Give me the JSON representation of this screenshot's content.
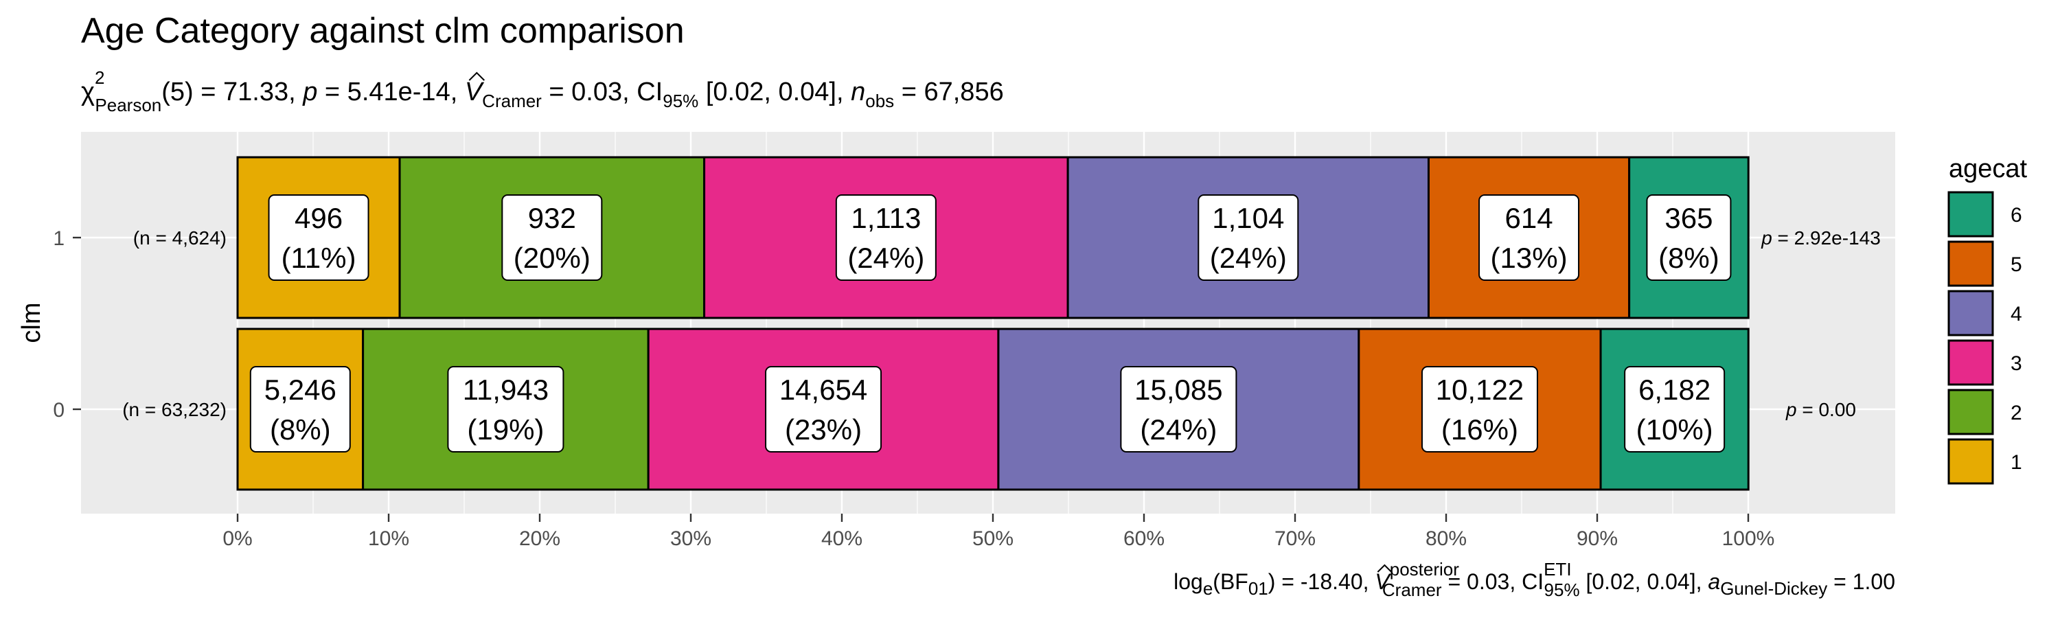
{
  "chart_data": {
    "type": "bar",
    "orientation": "horizontal-stacked-percent",
    "title": "Age Category against clm comparison",
    "subtitle": {
      "chi_sym": "χ",
      "chi_sup": "2",
      "chi_sub": "Pearson",
      "chi_rest": "(5) = 71.33, ",
      "p_italic": "p",
      "p_rest": " = 5.41e-14, ",
      "v_italic": "V",
      "v_sub": "Cramer",
      "v_rest": " = 0.03, CI",
      "ci_sub": "95%",
      "ci_rest": " [0.02, 0.04], ",
      "n_italic": "n",
      "n_sub": "obs",
      "n_rest": " = 67,856"
    },
    "caption": {
      "log_text": "log",
      "log_sub": "e",
      "bf_text": "(BF",
      "bf_sub": "01",
      "bf_rest": ") = -18.40, ",
      "v_italic": "V",
      "v_sup": "posterior",
      "v_sub": "Cramer",
      "v_rest": " = 0.03, CI",
      "ci_sup": "ETI",
      "ci_sub": "95%",
      "ci_rest": " [0.02, 0.04], ",
      "a_italic": "a",
      "a_sub": "Gunel-Dickey",
      "a_rest": " = 1.00"
    },
    "ylabel": "clm",
    "xlabel": "",
    "xlim": [
      0,
      1
    ],
    "x_ticks": [
      "0%",
      "10%",
      "20%",
      "30%",
      "40%",
      "50%",
      "60%",
      "70%",
      "80%",
      "90%",
      "100%"
    ],
    "legend": {
      "title": "agecat",
      "placement": "right",
      "entries": [
        "6",
        "5",
        "4",
        "3",
        "2",
        "1"
      ]
    },
    "grid": true,
    "series_colors": {
      "1": "#E6AB02",
      "2": "#66A61E",
      "3": "#E7298A",
      "4": "#7570B3",
      "5": "#D95F02",
      "6": "#1B9E77"
    },
    "rows": [
      {
        "category": "1",
        "n_label": "(n = 4,624)",
        "p_label": {
          "italic": "p",
          "rest": " = 2.92e-143"
        },
        "segments": [
          {
            "agecat": "1",
            "count": "496",
            "percent": "(11%)",
            "fraction": 0.1073
          },
          {
            "agecat": "2",
            "count": "932",
            "percent": "(20%)",
            "fraction": 0.2016
          },
          {
            "agecat": "3",
            "count": "1,113",
            "percent": "(24%)",
            "fraction": 0.2407
          },
          {
            "agecat": "4",
            "count": "1,104",
            "percent": "(24%)",
            "fraction": 0.2388
          },
          {
            "agecat": "5",
            "count": "614",
            "percent": "(13%)",
            "fraction": 0.1328
          },
          {
            "agecat": "6",
            "count": "365",
            "percent": "(8%)",
            "fraction": 0.0789
          }
        ]
      },
      {
        "category": "0",
        "n_label": "(n = 63,232)",
        "p_label": {
          "italic": "p",
          "rest": " = 0.00"
        },
        "segments": [
          {
            "agecat": "1",
            "count": "5,246",
            "percent": "(8%)",
            "fraction": 0.083
          },
          {
            "agecat": "2",
            "count": "11,943",
            "percent": "(19%)",
            "fraction": 0.1889
          },
          {
            "agecat": "3",
            "count": "14,654",
            "percent": "(23%)",
            "fraction": 0.2317
          },
          {
            "agecat": "4",
            "count": "15,085",
            "percent": "(24%)",
            "fraction": 0.2386
          },
          {
            "agecat": "5",
            "count": "10,122",
            "percent": "(16%)",
            "fraction": 0.1601
          },
          {
            "agecat": "6",
            "count": "6,182",
            "percent": "(10%)",
            "fraction": 0.0978
          }
        ]
      }
    ]
  }
}
